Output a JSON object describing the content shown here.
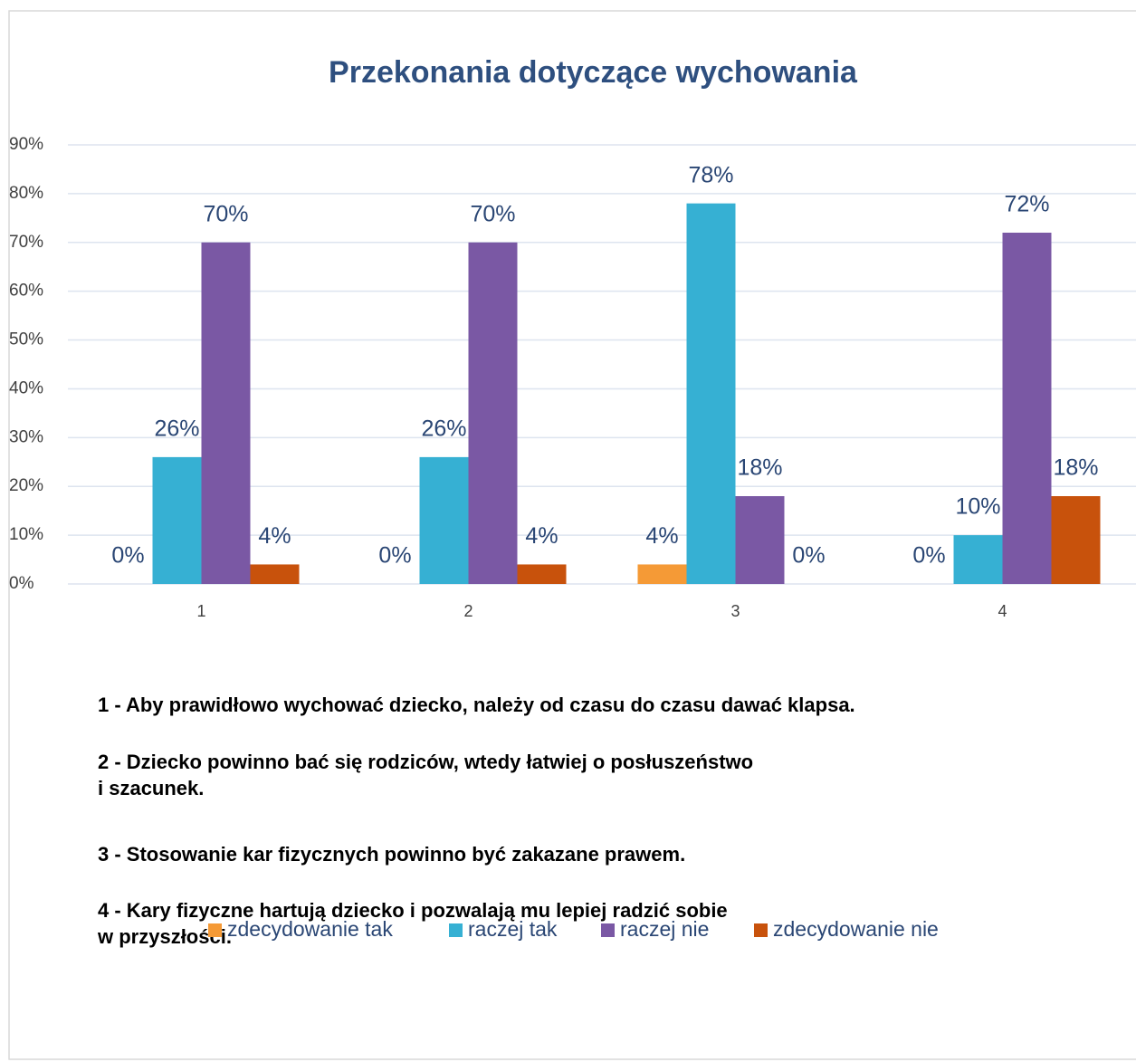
{
  "chart_data": {
    "type": "bar",
    "title": "Przekonania dotyczące wychowania",
    "categories": [
      "1",
      "2",
      "3",
      "4"
    ],
    "series": [
      {
        "name": "zdecydowanie tak",
        "color": "#f59a36",
        "values": [
          0,
          0,
          4,
          0
        ],
        "value_labels": [
          "0%",
          "0%",
          "4%",
          "0%"
        ]
      },
      {
        "name": "raczej tak",
        "color": "#36b0d3",
        "values": [
          26,
          26,
          78,
          10
        ],
        "value_labels": [
          "26%",
          "26%",
          "78%",
          "10%"
        ]
      },
      {
        "name": "raczej nie",
        "color": "#7a58a4",
        "values": [
          70,
          70,
          18,
          72
        ],
        "value_labels": [
          "70%",
          "70%",
          "18%",
          "72%"
        ]
      },
      {
        "name": "zdecydowanie nie",
        "color": "#c8520c",
        "values": [
          4,
          4,
          0,
          18
        ],
        "value_labels": [
          "4%",
          "4%",
          "0%",
          "18%"
        ]
      }
    ],
    "ylim": [
      0,
      90
    ],
    "yticks": [
      {
        "value": 0,
        "label": "0%"
      },
      {
        "value": 10,
        "label": "10%"
      },
      {
        "value": 20,
        "label": "20%"
      },
      {
        "value": 30,
        "label": "30%"
      },
      {
        "value": 40,
        "label": "40%"
      },
      {
        "value": 50,
        "label": "50%"
      },
      {
        "value": 60,
        "label": "60%"
      },
      {
        "value": 70,
        "label": "70%"
      },
      {
        "value": 80,
        "label": "80%"
      },
      {
        "value": 90,
        "label": "90%"
      }
    ],
    "grid": true,
    "legend": "bottom",
    "notes": [
      [
        "1 - Aby prawidłowo wychować dziecko, należy od czasu do czasu dawać klapsa."
      ],
      [
        "2 - Dziecko powinno bać się rodziców, wtedy łatwiej o posłuszeństwo",
        "i szacunek."
      ],
      [
        "3 - Stosowanie kar fizycznych powinno być zakazane prawem."
      ],
      [
        "4 - Kary fizyczne hartują dziecko i pozwalają mu lepiej radzić sobie",
        "w przyszłości."
      ]
    ]
  }
}
